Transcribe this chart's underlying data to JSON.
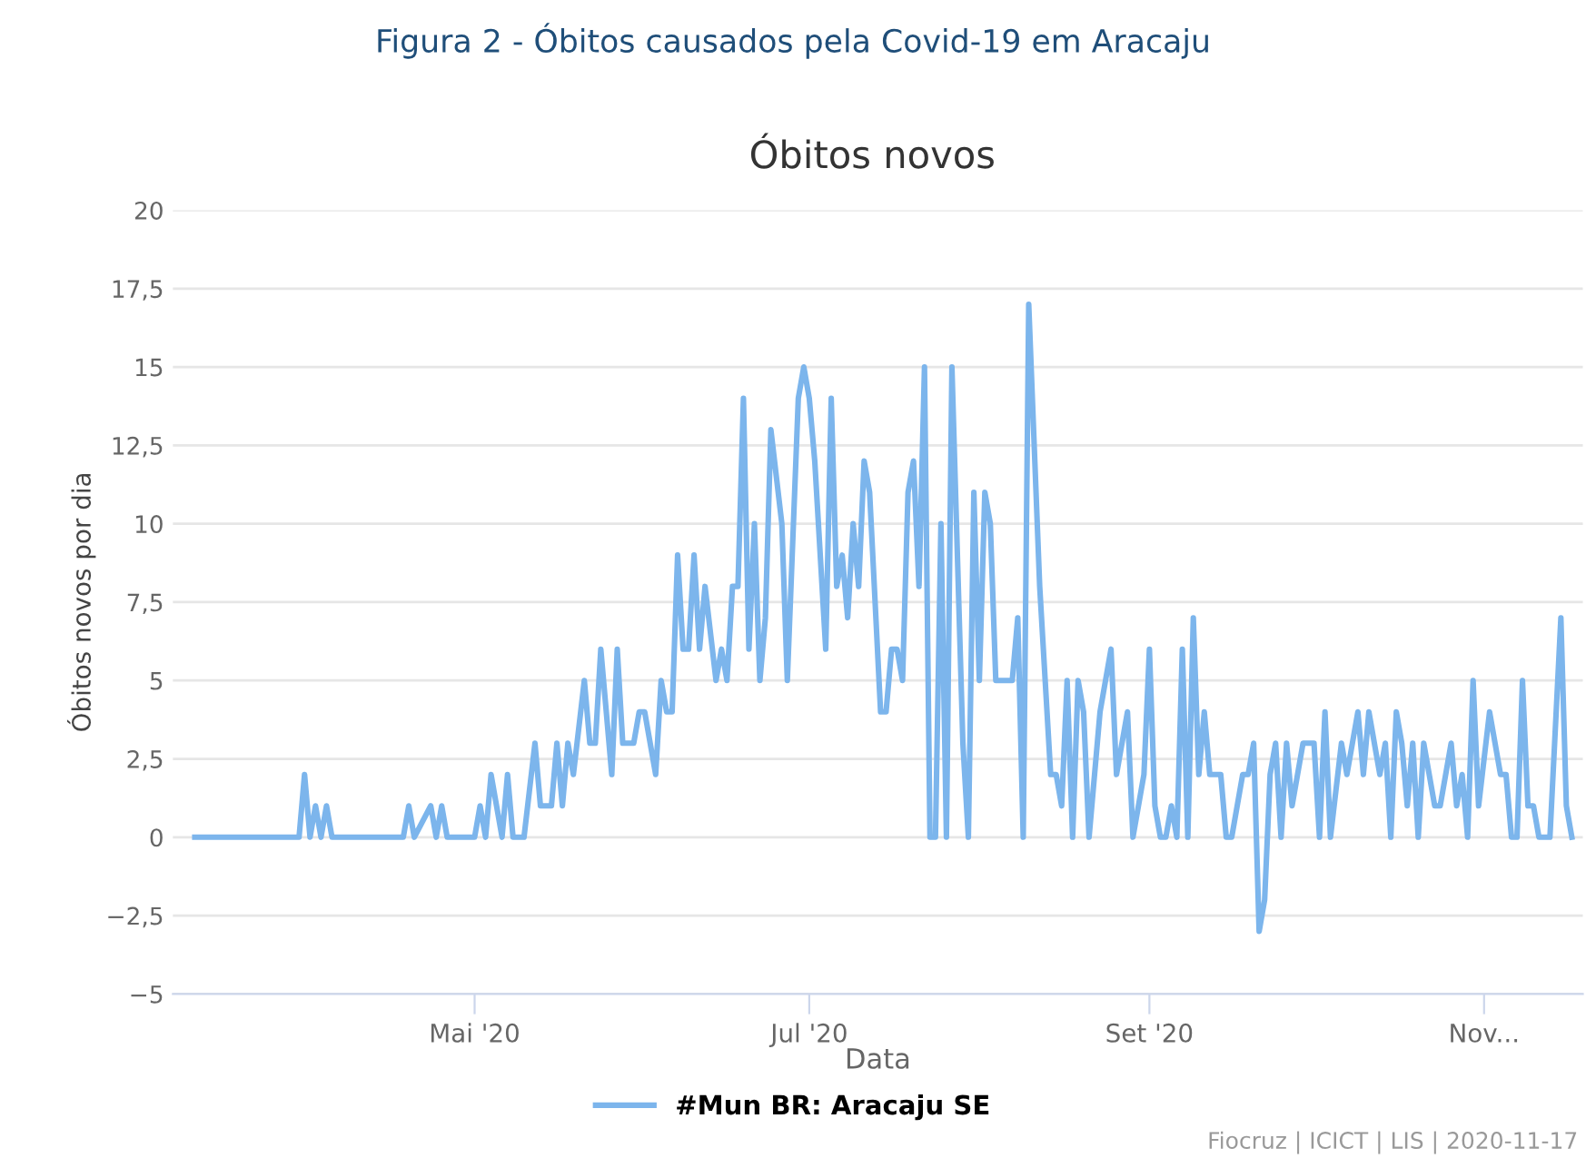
{
  "chart_data": {
    "type": "line",
    "title": "Figura 2 - Óbitos causados pela Covid-19 em Aracaju",
    "subtitle": "Óbitos novos",
    "xlabel": "Data",
    "ylabel": "Óbitos novos por dia",
    "annotations": [
      "Fiocruz | ICICT | LIS | 2020-11-17"
    ],
    "series": [
      {
        "name": "#Mun BR: Aracaju SE",
        "color": "#7cb5ec",
        "x": [
          "2020-03-11",
          "2020-03-30",
          "2020-03-31",
          "2020-04-01",
          "2020-04-02",
          "2020-04-03",
          "2020-04-04",
          "2020-04-05",
          "2020-04-18",
          "2020-04-19",
          "2020-04-20",
          "2020-04-23",
          "2020-04-24",
          "2020-04-25",
          "2020-04-26",
          "2020-05-01",
          "2020-05-02",
          "2020-05-03",
          "2020-05-04",
          "2020-05-06",
          "2020-05-07",
          "2020-05-08",
          "2020-05-10",
          "2020-05-12",
          "2020-05-13",
          "2020-05-15",
          "2020-05-16",
          "2020-05-17",
          "2020-05-18",
          "2020-05-19",
          "2020-05-21",
          "2020-05-22",
          "2020-05-23",
          "2020-05-24",
          "2020-05-26",
          "2020-05-27",
          "2020-05-28",
          "2020-05-30",
          "2020-05-31",
          "2020-06-01",
          "2020-06-03",
          "2020-06-04",
          "2020-06-05",
          "2020-06-06",
          "2020-06-07",
          "2020-06-08",
          "2020-06-09",
          "2020-06-10",
          "2020-06-11",
          "2020-06-12",
          "2020-06-14",
          "2020-06-15",
          "2020-06-16",
          "2020-06-17",
          "2020-06-18",
          "2020-06-19",
          "2020-06-20",
          "2020-06-21",
          "2020-06-22",
          "2020-06-23",
          "2020-06-24",
          "2020-06-26",
          "2020-06-27",
          "2020-06-29",
          "2020-06-30",
          "2020-07-01",
          "2020-07-02",
          "2020-07-04",
          "2020-07-05",
          "2020-07-06",
          "2020-07-07",
          "2020-07-08",
          "2020-07-09",
          "2020-07-10",
          "2020-07-11",
          "2020-07-12",
          "2020-07-14",
          "2020-07-15",
          "2020-07-16",
          "2020-07-17",
          "2020-07-18",
          "2020-07-19",
          "2020-07-20",
          "2020-07-21",
          "2020-07-22",
          "2020-07-23",
          "2020-07-24",
          "2020-07-25",
          "2020-07-26",
          "2020-07-27",
          "2020-07-29",
          "2020-07-30",
          "2020-07-31",
          "2020-08-01",
          "2020-08-02",
          "2020-08-03",
          "2020-08-04",
          "2020-08-07",
          "2020-08-08",
          "2020-08-09",
          "2020-08-10",
          "2020-08-12",
          "2020-08-14",
          "2020-08-15",
          "2020-08-16",
          "2020-08-17",
          "2020-08-18",
          "2020-08-19",
          "2020-08-20",
          "2020-08-21",
          "2020-08-23",
          "2020-08-25",
          "2020-08-26",
          "2020-08-28",
          "2020-08-29",
          "2020-08-31",
          "2020-09-01",
          "2020-09-02",
          "2020-09-03",
          "2020-09-04",
          "2020-09-05",
          "2020-09-06",
          "2020-09-07",
          "2020-09-08",
          "2020-09-09",
          "2020-09-10",
          "2020-09-11",
          "2020-09-12",
          "2020-09-14",
          "2020-09-15",
          "2020-09-16",
          "2020-09-18",
          "2020-09-19",
          "2020-09-20",
          "2020-09-21",
          "2020-09-22",
          "2020-09-23",
          "2020-09-24",
          "2020-09-25",
          "2020-09-26",
          "2020-09-27",
          "2020-09-29",
          "2020-10-01",
          "2020-10-02",
          "2020-10-03",
          "2020-10-04",
          "2020-10-06",
          "2020-10-07",
          "2020-10-09",
          "2020-10-10",
          "2020-10-11",
          "2020-10-13",
          "2020-10-14",
          "2020-10-15",
          "2020-10-16",
          "2020-10-17",
          "2020-10-18",
          "2020-10-19",
          "2020-10-20",
          "2020-10-21",
          "2020-10-23",
          "2020-10-24",
          "2020-10-26",
          "2020-10-27",
          "2020-10-28",
          "2020-10-29",
          "2020-10-30",
          "2020-10-31",
          "2020-11-02",
          "2020-11-04",
          "2020-11-05",
          "2020-11-06",
          "2020-11-07",
          "2020-11-08",
          "2020-11-09",
          "2020-11-10",
          "2020-11-11",
          "2020-11-13",
          "2020-11-15",
          "2020-11-16",
          "2020-11-17"
        ],
        "values": [
          0,
          0,
          2,
          0,
          1,
          0,
          1,
          0,
          0,
          1,
          0,
          1,
          0,
          1,
          0,
          0,
          1,
          0,
          2,
          0,
          2,
          0,
          0,
          3,
          1,
          1,
          3,
          1,
          3,
          2,
          5,
          3,
          3,
          6,
          2,
          6,
          3,
          3,
          4,
          4,
          2,
          5,
          4,
          4,
          9,
          6,
          6,
          9,
          6,
          8,
          5,
          6,
          5,
          8,
          8,
          14,
          6,
          10,
          5,
          7,
          13,
          10,
          5,
          14,
          15,
          14,
          12,
          6,
          14,
          8,
          9,
          7,
          10,
          8,
          12,
          11,
          4,
          4,
          6,
          6,
          5,
          11,
          12,
          8,
          15,
          0,
          0,
          10,
          0,
          15,
          3,
          0,
          11,
          5,
          11,
          10,
          5,
          5,
          7,
          0,
          17,
          8,
          2,
          2,
          1,
          5,
          0,
          5,
          4,
          0,
          4,
          6,
          2,
          4,
          0,
          2,
          6,
          1,
          0,
          0,
          1,
          0,
          6,
          0,
          7,
          2,
          4,
          2,
          2,
          0,
          0,
          2,
          2,
          3,
          -3,
          -2,
          2,
          3,
          0,
          3,
          1,
          3,
          3,
          0,
          4,
          0,
          3,
          2,
          4,
          2,
          4,
          2,
          3,
          0,
          4,
          3,
          1,
          3,
          0,
          3,
          1,
          1,
          3,
          1,
          2,
          0,
          5,
          1,
          4,
          2,
          2,
          0,
          0,
          5,
          1,
          1,
          0,
          0,
          7,
          1,
          0
        ]
      }
    ],
    "xlim": [
      "2020-03-07",
      "2020-11-19"
    ],
    "xticks": [
      {
        "value": "2020-05-01",
        "label": "Mai '20"
      },
      {
        "value": "2020-07-01",
        "label": "Jul '20"
      },
      {
        "value": "2020-09-01",
        "label": "Set '20"
      },
      {
        "value": "2020-11-01",
        "label": "Nov..."
      }
    ],
    "ylim": [
      -5,
      20
    ],
    "yticks": [
      {
        "value": -5,
        "label": "−5"
      },
      {
        "value": -2.5,
        "label": "−2,5"
      },
      0,
      {
        "value": 2.5,
        "label": "2,5"
      },
      5,
      {
        "value": 7.5,
        "label": "7,5"
      },
      10,
      {
        "value": 12.5,
        "label": "12,5"
      },
      15,
      {
        "value": 17.5,
        "label": "17,5"
      },
      20
    ],
    "grid": "y",
    "legend": "bottom",
    "marker": "none",
    "line_style": "solid"
  }
}
